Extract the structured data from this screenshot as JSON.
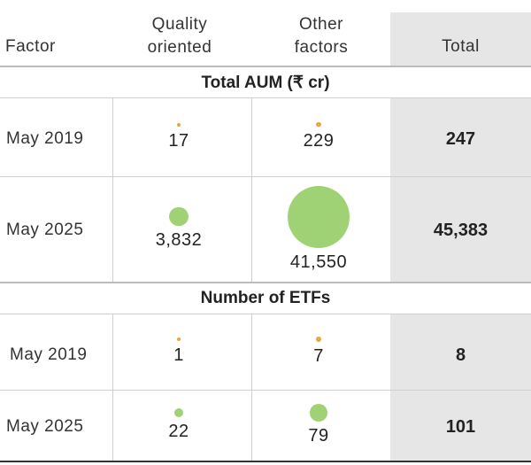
{
  "headers": {
    "factor": "Factor",
    "quality_line1": "Quality",
    "quality_line2": "oriented",
    "other_line1": "Other",
    "other_line2": "factors",
    "total": "Total"
  },
  "colors": {
    "may_2019": "#e5a93f",
    "may_2025": "#9fd175",
    "total_column": "#e6e6e6"
  },
  "chart_data": {
    "type": "table",
    "columns": [
      "Factor",
      "Quality oriented",
      "Other factors",
      "Total"
    ],
    "sections": [
      {
        "title": "Total AUM (₹ cr)",
        "rows": [
          {
            "label": "May 2019",
            "quality": "17",
            "other": "229",
            "total": "247",
            "quality_value": 17,
            "other_value": 229
          },
          {
            "label": "May 2025",
            "quality": "3,832",
            "other": "41,550",
            "total": "45,383",
            "quality_value": 3832,
            "other_value": 41550
          }
        ]
      },
      {
        "title": "Number of ETFs",
        "rows": [
          {
            "label": "May 2019",
            "quality": "1",
            "other": "7",
            "total": "8",
            "quality_value": 1,
            "other_value": 7
          },
          {
            "label": "May 2025",
            "quality": "22",
            "other": "79",
            "total": "101",
            "quality_value": 22,
            "other_value": 79
          }
        ]
      }
    ]
  }
}
